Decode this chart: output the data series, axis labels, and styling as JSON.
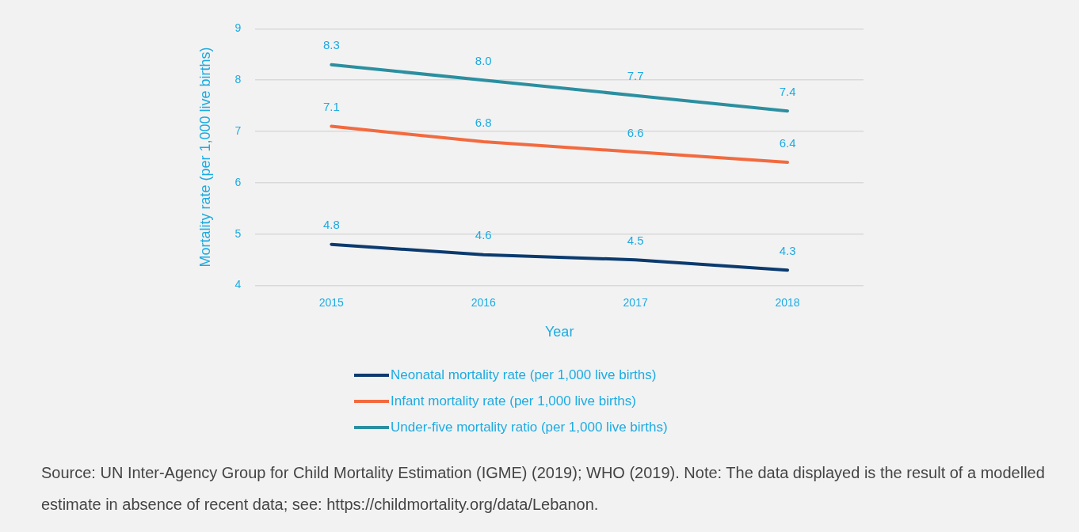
{
  "chart_data": {
    "type": "line",
    "xlabel": "Year",
    "ylabel": "Mortality rate (per 1,000 live births)",
    "categories": [
      "2015",
      "2016",
      "2017",
      "2018"
    ],
    "series": [
      {
        "name": "Neonatal mortality rate (per 1,000 live births)",
        "color": "#0b3a6e",
        "values": [
          4.8,
          4.6,
          4.5,
          4.3
        ],
        "value_labels": [
          "4.8",
          "4.6",
          "4.5",
          "4.3"
        ]
      },
      {
        "name": "Infant mortality rate (per 1,000 live births)",
        "color": "#f26a3f",
        "values": [
          7.1,
          6.8,
          6.6,
          6.4
        ],
        "value_labels": [
          "7.1",
          "6.8",
          "6.6",
          "6.4"
        ]
      },
      {
        "name": "Under-five mortality ratio (per 1,000 live births)",
        "color": "#2b8fa0",
        "values": [
          8.3,
          8.0,
          7.7,
          7.4
        ],
        "value_labels": [
          "8.3",
          "8.0",
          "7.7",
          "7.4"
        ]
      }
    ],
    "ylim": [
      4,
      9
    ],
    "yticks": [
      4,
      5,
      6,
      7,
      8,
      9
    ],
    "grid": "y",
    "legend": "bottom",
    "marker": "none",
    "line_style": "solid",
    "annotations": [
      "Source: UN Inter-Agency Group for Child Mortality Estimation (IGME) (2019); WHO (2019). Note: The data displayed is the result of a modelled estimate in absence of recent data; see: https://childmortality.org/data/Lebanon."
    ]
  }
}
